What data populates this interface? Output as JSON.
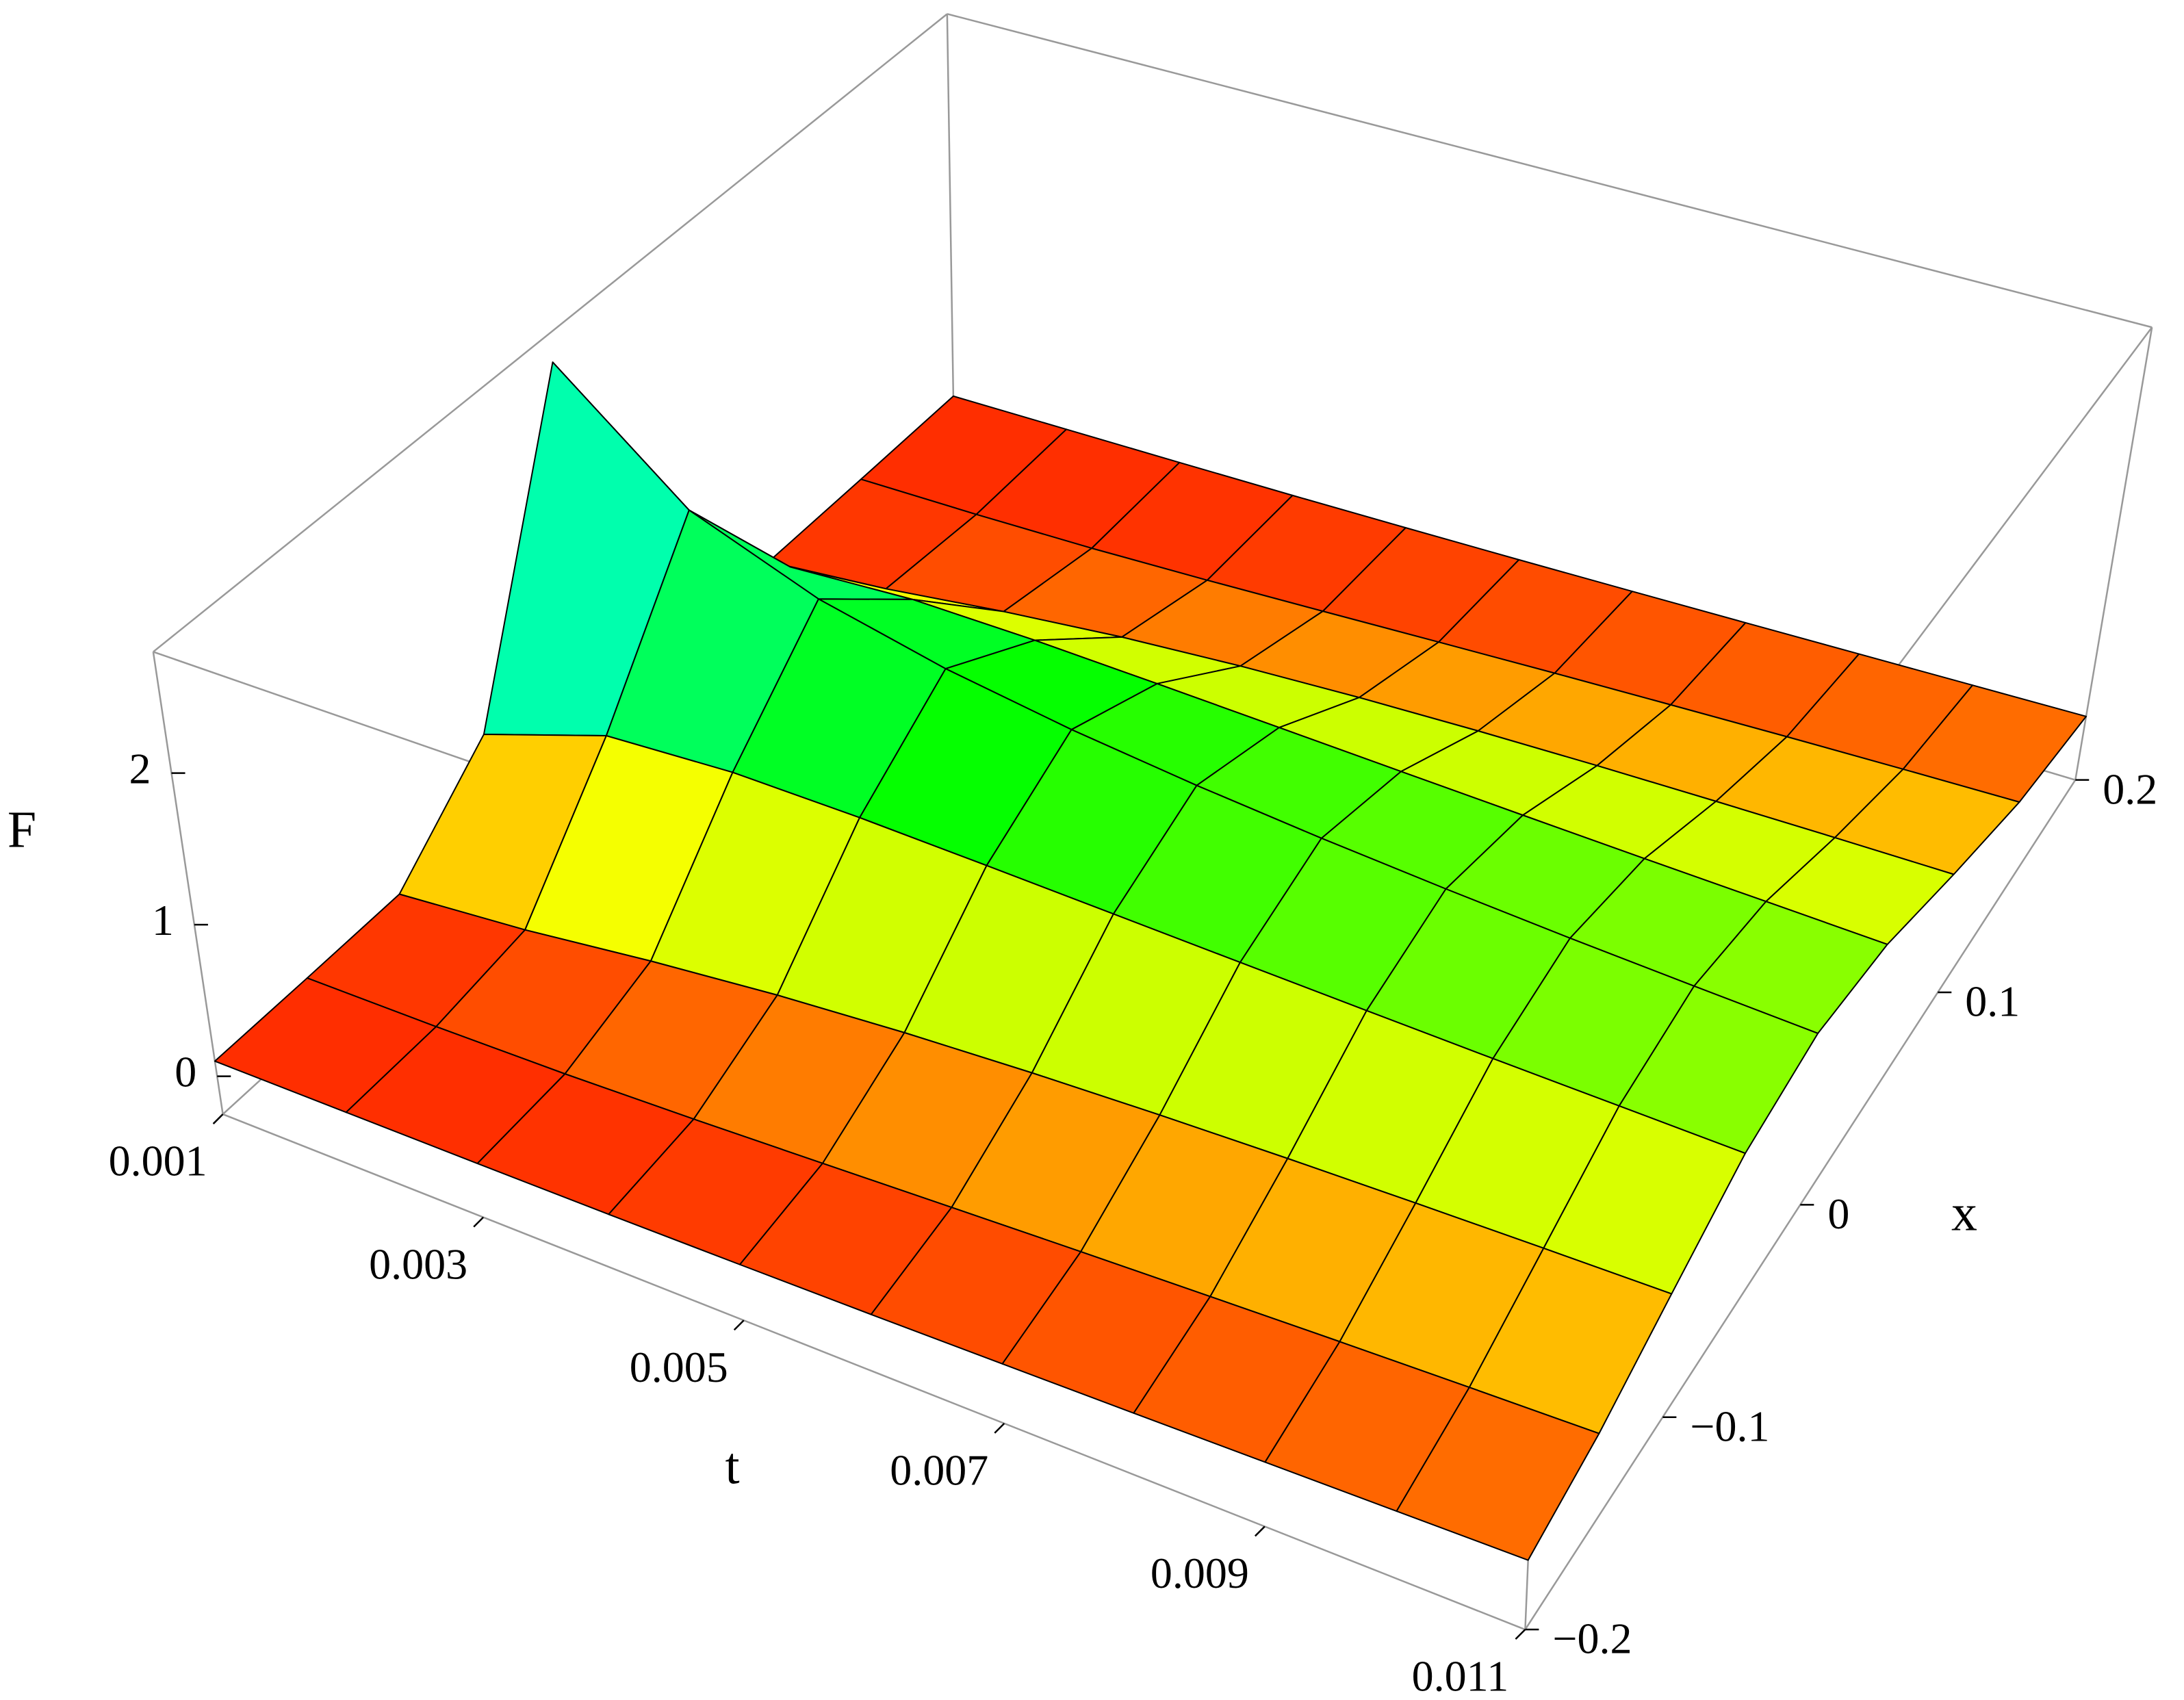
{
  "chart_data": {
    "type": "surface",
    "t_label": "t",
    "x_label": "x",
    "z_label": "F",
    "t": [
      0.001,
      0.002,
      0.003,
      0.004,
      0.005,
      0.006,
      0.007,
      0.008,
      0.009,
      0.01,
      0.011
    ],
    "x": [
      -0.2,
      -0.15,
      -0.1,
      -0.05,
      0,
      0.05,
      0.1,
      0.15,
      0.2
    ],
    "z": [
      [
        0.1,
        0.1,
        0.105,
        0.624,
        2.6,
        0.624,
        0.105,
        0.1,
        0.1
      ],
      [
        0.1,
        0.102,
        0.178,
        0.91,
        1.868,
        0.91,
        0.178,
        0.102,
        0.1
      ],
      [
        0.1,
        0.113,
        0.28,
        0.957,
        1.543,
        0.957,
        0.28,
        0.113,
        0.1
      ],
      [
        0.102,
        0.137,
        0.362,
        0.946,
        1.35,
        0.946,
        0.362,
        0.137,
        0.102
      ],
      [
        0.108,
        0.167,
        0.42,
        0.918,
        1.218,
        0.918,
        0.42,
        0.167,
        0.108
      ],
      [
        0.116,
        0.198,
        0.46,
        0.887,
        1.121,
        0.887,
        0.46,
        0.198,
        0.116
      ],
      [
        0.127,
        0.227,
        0.487,
        0.856,
        1.045,
        0.856,
        0.487,
        0.227,
        0.127
      ],
      [
        0.139,
        0.252,
        0.505,
        0.827,
        0.984,
        0.827,
        0.505,
        0.252,
        0.139
      ],
      [
        0.152,
        0.275,
        0.516,
        0.8,
        0.933,
        0.8,
        0.516,
        0.275,
        0.152
      ],
      [
        0.165,
        0.294,
        0.523,
        0.777,
        0.891,
        0.777,
        0.523,
        0.294,
        0.165
      ],
      [
        0.178,
        0.31,
        0.527,
        0.754,
        0.854,
        0.754,
        0.527,
        0.31,
        0.178
      ]
    ],
    "tlim": [
      0.001,
      0.011
    ],
    "tticks": [
      0.001,
      0.003,
      0.005,
      0.007,
      0.009,
      0.011
    ],
    "xlim": [
      -0.2,
      0.2
    ],
    "xticks": [
      {
        "value": -0.2,
        "label": "−0.2"
      },
      {
        "value": -0.1,
        "label": "−0.1"
      },
      0,
      0.1,
      0.2
    ],
    "zlim": [
      -0.25,
      2.8
    ],
    "zticks": [
      0,
      1,
      2
    ],
    "mesh": true
  }
}
